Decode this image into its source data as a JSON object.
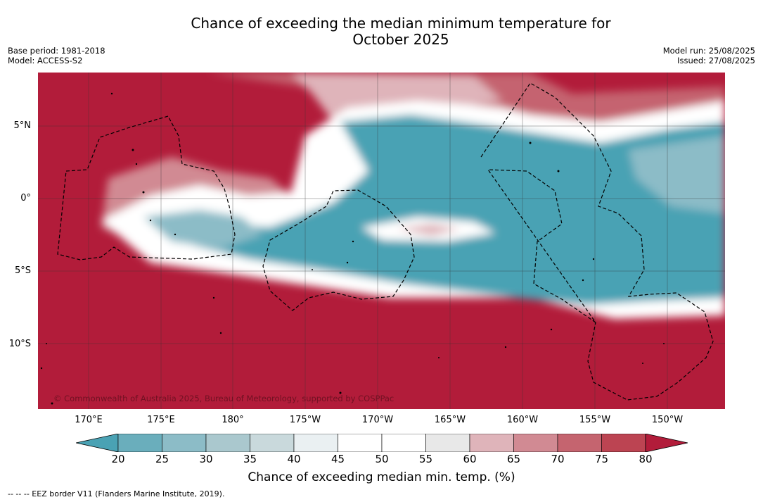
{
  "title_line1": "Chance of exceeding the median minimum temperature for",
  "title_line2": "October 2025",
  "meta_left": {
    "base_period": "Base period: 1981-2018",
    "model": "Model: ACCESS-S2"
  },
  "meta_right": {
    "model_run": "Model run: 25/08/2025",
    "issued": "Issued: 27/08/2025"
  },
  "copyright": "© Commonwealth of Australia 2025, Bureau of Meteorology, supported by COSPPac",
  "lat_labels": [
    "5°N",
    "0°",
    "5°S",
    "10°S"
  ],
  "lon_labels": [
    "170°E",
    "175°E",
    "180°",
    "175°W",
    "170°W",
    "165°W",
    "160°W",
    "155°W",
    "150°W"
  ],
  "colorbar": {
    "ticks": [
      "20",
      "25",
      "30",
      "35",
      "40",
      "45",
      "50",
      "55",
      "60",
      "65",
      "70",
      "75",
      "80"
    ],
    "colors": [
      "#4aa2b4",
      "#6aaebc",
      "#8cbcc7",
      "#aac8ce",
      "#c9d9dc",
      "#eaf0f2",
      "#ffffff",
      "#ffffff",
      "#e8e8e8",
      "#dfb4ba",
      "#d18a93",
      "#c5646f",
      "#bc4452",
      "#b21c3a"
    ],
    "label": "Chance of exceeding median min. temp. (%)"
  },
  "footer": "--  --  -- EEZ border V11 (Flanders Marine Institute, 2019)."
}
